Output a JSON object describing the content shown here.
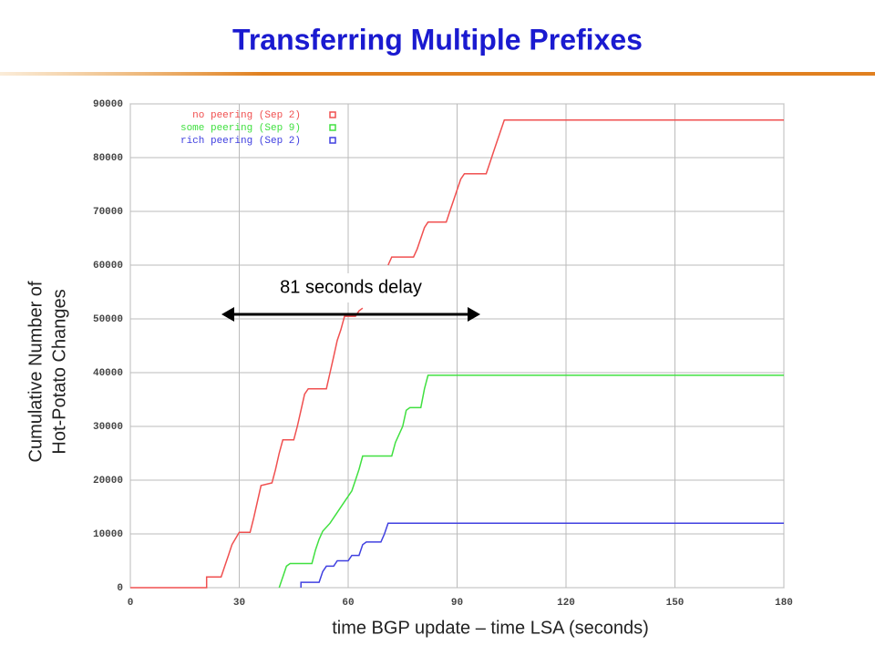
{
  "title": "Transferring Multiple Prefixes",
  "chart_data": {
    "type": "line",
    "ylabel": [
      "Cumulative Number of",
      "Hot-Potato Changes"
    ],
    "xlabel": "time BGP update – time LSA (seconds)",
    "annotation": "81 seconds delay",
    "xlim": [
      0,
      180
    ],
    "xticks": [
      0,
      30,
      60,
      90,
      120,
      150,
      180
    ],
    "ylim": [
      0,
      90000
    ],
    "yticks": [
      0,
      10000,
      20000,
      30000,
      40000,
      50000,
      60000,
      70000,
      80000,
      90000
    ],
    "grid": true,
    "series": [
      {
        "name": "no peering (Sep 2)",
        "color": "#f05050",
        "x": [
          0,
          21,
          21,
          25,
          26,
          27,
          28,
          30,
          33,
          34,
          35,
          36,
          39,
          40,
          41,
          42,
          45,
          46,
          47,
          48,
          49,
          54,
          55,
          56,
          57,
          58,
          59,
          62,
          63,
          64,
          67,
          71,
          72,
          78,
          79,
          80,
          81,
          82,
          87,
          88,
          89,
          90,
          91,
          92,
          98,
          99,
          100,
          101,
          102,
          103,
          180
        ],
        "values": [
          0,
          0,
          2000,
          2000,
          4000,
          6000,
          8000,
          10300,
          10300,
          13000,
          16000,
          19000,
          19500,
          22000,
          25000,
          27500,
          27500,
          30000,
          33000,
          36000,
          37000,
          37000,
          40000,
          43000,
          46000,
          48000,
          50500,
          50500,
          51500,
          52000,
          null,
          60000,
          61500,
          61500,
          63000,
          65000,
          67000,
          68000,
          68000,
          70000,
          72000,
          74000,
          76000,
          77000,
          77000,
          79000,
          81000,
          83000,
          85000,
          87000,
          87000
        ]
      },
      {
        "name": "some peering (Sep 9)",
        "color": "#40e040",
        "x": [
          41,
          42,
          43,
          44,
          50,
          51,
          52,
          53,
          55,
          57,
          59,
          61,
          62,
          63,
          64,
          72,
          73,
          75,
          76,
          77,
          80,
          81,
          82,
          180
        ],
        "values": [
          0,
          2000,
          4000,
          4500,
          4500,
          7000,
          9000,
          10500,
          12000,
          14000,
          16000,
          18000,
          20000,
          22000,
          24500,
          24500,
          27000,
          30000,
          33000,
          33500,
          33500,
          37000,
          39500,
          39500
        ]
      },
      {
        "name": "rich peering (Sep 2)",
        "color": "#4040e0",
        "x": [
          47,
          47,
          52,
          53,
          54,
          56,
          57,
          60,
          61,
          63,
          64,
          65,
          69,
          70,
          71,
          180
        ],
        "values": [
          0,
          1000,
          1000,
          3000,
          4000,
          4000,
          5000,
          5000,
          6000,
          6000,
          8000,
          8500,
          8500,
          10000,
          12000,
          12000
        ]
      }
    ]
  }
}
